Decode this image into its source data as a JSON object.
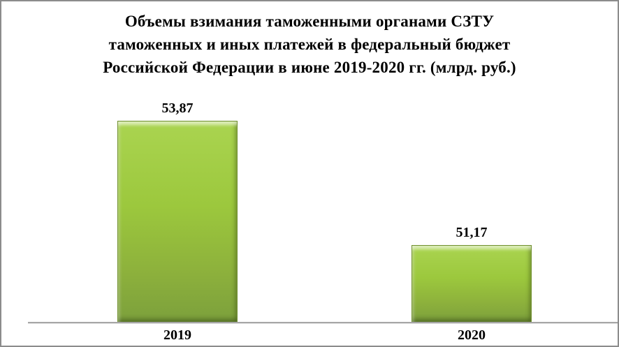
{
  "chart_data": {
    "type": "bar",
    "title": "Объемы взимания таможенными органами СЗТУ таможенных и иных платежей в федеральный бюджет Российской Федерации в июне 2019-2020 гг. (млрд. руб.)",
    "title_lines": [
      "Объемы взимания таможенными органами СЗТУ",
      "таможенных и иных платежей в федеральный бюджет",
      "Российской Федерации в июне 2019-2020 гг. (млрд. руб.)"
    ],
    "categories": [
      "2019",
      "2020"
    ],
    "values": [
      53.87,
      51.17
    ],
    "value_labels": [
      "53,87",
      "51,17"
    ],
    "unit": "млрд. руб.",
    "xlabel": "",
    "ylabel": "",
    "ylim": [
      49.5,
      55.5
    ],
    "grid": false,
    "legend": false,
    "y_axis_ticks_visible": false,
    "colors": {
      "bar_main": "#9cc83d",
      "bar_top": "#aad450",
      "bar_bottom": "#7ca03c",
      "bar_bevel_light": "#c9e487",
      "bar_border": "#6f8f2d",
      "axis_line": "#a6a6a6",
      "frame_border": "#8c8c8c",
      "title_text": "#000000",
      "background": "#ffffff"
    }
  }
}
